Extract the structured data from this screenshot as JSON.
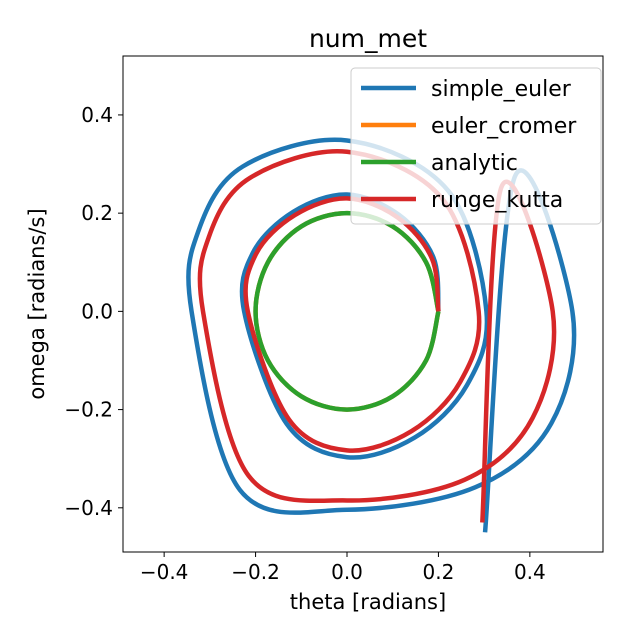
{
  "chart_data": {
    "type": "line",
    "title": "num_met",
    "xlabel": "theta [radians]",
    "ylabel": "omega [radians/s]",
    "xlim": [
      -0.49,
      0.56
    ],
    "ylim": [
      -0.49,
      0.52
    ],
    "xticks": [
      -0.4,
      -0.2,
      0.0,
      0.2,
      0.4
    ],
    "xtick_labels": [
      "−0.4",
      "−0.2",
      "0.0",
      "0.2",
      "0.4"
    ],
    "yticks": [
      -0.4,
      -0.2,
      0.0,
      0.2,
      0.4
    ],
    "ytick_labels": [
      "−0.4",
      "−0.2",
      "0.0",
      "0.2",
      "0.4"
    ],
    "grid": false,
    "legend_position": "top-right",
    "series": [
      {
        "name": "simple_euler",
        "color": "#1f77b4",
        "start_radius": 0.2,
        "end_radius": 0.53,
        "turns": 3.26,
        "x": [
          0.2,
          0.189,
          0.113,
          0.0,
          -0.117,
          -0.206,
          -0.225,
          -0.132,
          0.0,
          0.148,
          0.262,
          0.305,
          0.222,
          0.0,
          -0.228,
          -0.325,
          -0.34,
          -0.234,
          0.0,
          0.281,
          0.447,
          0.493,
          0.367,
          0.302
        ],
        "y": [
          0.0,
          0.11,
          0.197,
          0.238,
          0.203,
          0.119,
          0.0,
          -0.229,
          -0.297,
          -0.257,
          -0.151,
          0.0,
          0.245,
          0.348,
          0.295,
          0.164,
          0.0,
          -0.364,
          -0.404,
          -0.358,
          -0.228,
          0.0,
          0.274,
          -0.45
        ]
      },
      {
        "name": "euler_cromer",
        "color": "#ff7f0e",
        "x": [
          0.2,
          0.173,
          0.1,
          0.0,
          -0.1,
          -0.173,
          -0.2,
          -0.173,
          -0.1,
          0.0,
          0.1,
          0.173,
          0.2
        ],
        "y": [
          0.0,
          0.1,
          0.173,
          0.2,
          0.173,
          0.1,
          0.0,
          -0.1,
          -0.173,
          -0.2,
          -0.173,
          -0.1,
          0.0
        ]
      },
      {
        "name": "analytic",
        "color": "#2ca02c",
        "x": [
          0.2,
          0.173,
          0.1,
          0.0,
          -0.1,
          -0.173,
          -0.2,
          -0.173,
          -0.1,
          0.0,
          0.1,
          0.173,
          0.2
        ],
        "y": [
          0.0,
          0.1,
          0.173,
          0.2,
          0.173,
          0.1,
          0.0,
          -0.1,
          -0.173,
          -0.2,
          -0.173,
          -0.1,
          0.0
        ]
      },
      {
        "name": "runge_kutta",
        "color": "#d62728",
        "x": [
          0.2,
          0.186,
          0.111,
          0.0,
          -0.114,
          -0.2,
          -0.217,
          -0.127,
          0.0,
          0.141,
          0.248,
          0.288,
          0.208,
          0.0,
          -0.212,
          -0.302,
          -0.315,
          -0.215,
          0.0,
          0.257,
          0.406,
          0.45,
          0.337,
          0.296
        ],
        "y": [
          0.0,
          0.107,
          0.191,
          0.23,
          0.196,
          0.115,
          0.0,
          -0.22,
          -0.283,
          -0.244,
          -0.143,
          0.0,
          0.23,
          0.325,
          0.272,
          0.152,
          0.0,
          -0.335,
          -0.385,
          -0.343,
          -0.217,
          0.0,
          0.251,
          -0.43
        ]
      }
    ]
  }
}
